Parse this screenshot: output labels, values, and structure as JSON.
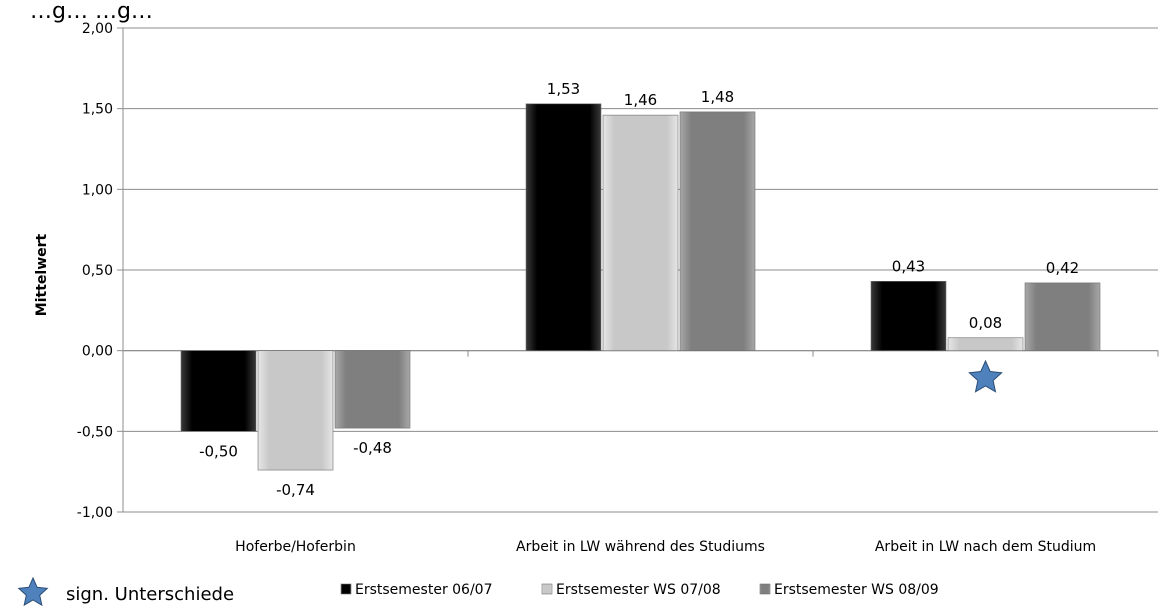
{
  "chart_data": {
    "type": "bar",
    "title": "…g… …g…",
    "ylabel": "Mittelwert",
    "xlabel": "",
    "ylim": [
      -1.0,
      2.0
    ],
    "ytick_step": 0.5,
    "ytick_labels": [
      "-1,00",
      "-0,50",
      "0,00",
      "0,50",
      "1,00",
      "1,50",
      "2,00"
    ],
    "grid": true,
    "categories": [
      "Hoferbe/Hoferbin",
      "Arbeit in LW während des Studiums",
      "Arbeit in LW nach dem Studium"
    ],
    "series": [
      {
        "name": "Erstsemester 06/07",
        "color": "#111111",
        "values": [
          -0.5,
          1.53,
          0.43
        ],
        "labels": [
          "-0,50",
          "1,53",
          "0,43"
        ]
      },
      {
        "name": "Erstsemester WS 07/08",
        "color": "#c8c8c8",
        "values": [
          -0.74,
          1.46,
          0.08
        ],
        "labels": [
          "-0,74",
          "1,46",
          "0,08"
        ]
      },
      {
        "name": "Erstsemester WS 08/09",
        "color": "#7f7f7f",
        "values": [
          -0.48,
          1.48,
          0.42
        ],
        "labels": [
          "-0,48",
          "1,48",
          "0,42"
        ]
      }
    ],
    "significance": {
      "icon": "star-icon",
      "color": "#4f81bd",
      "category_index": 2,
      "label": "sign. Unterschiede"
    },
    "legend_position": "bottom"
  }
}
